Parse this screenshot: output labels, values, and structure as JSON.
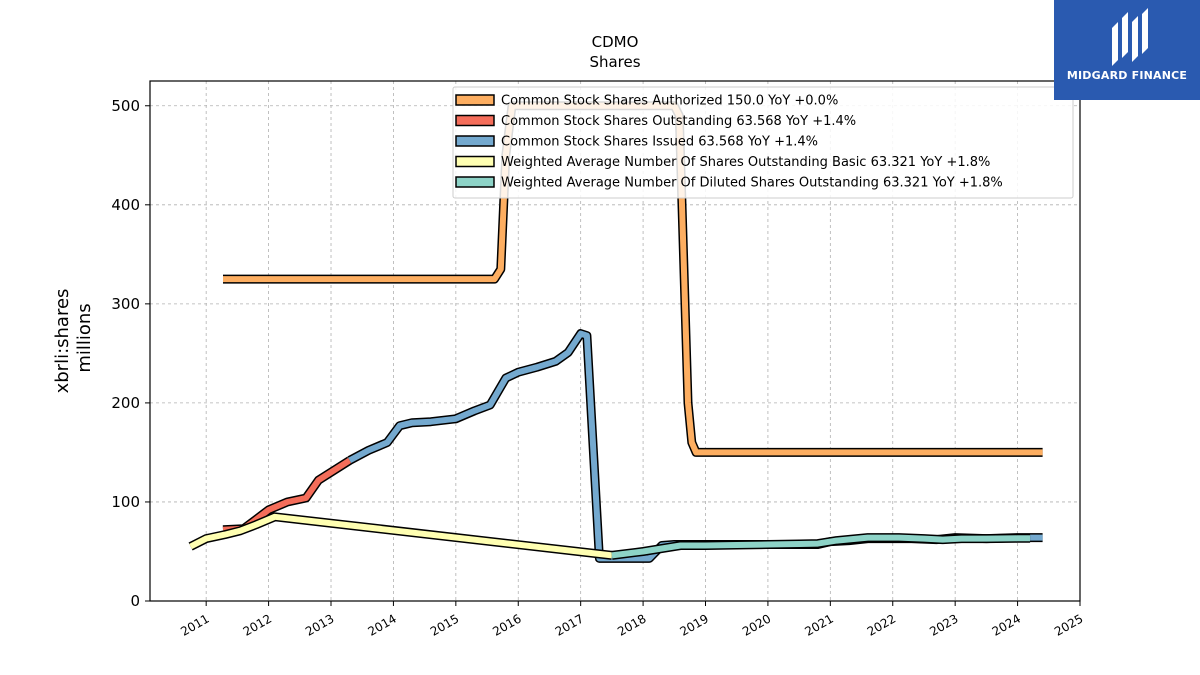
{
  "chart_data": {
    "type": "line",
    "title": "CDMO",
    "subtitle": "Shares",
    "ylabel": "xbrli:shares",
    "ylabel2": "millions",
    "ylim": [
      0,
      525
    ],
    "xlim": [
      2010.1,
      2025.0
    ],
    "yticks": [
      0,
      100,
      200,
      300,
      400,
      500
    ],
    "yticklabels": [
      "0",
      "100",
      "200",
      "300",
      "400",
      "500"
    ],
    "xticks": [
      2011,
      2012,
      2013,
      2014,
      2015,
      2016,
      2017,
      2018,
      2019,
      2020,
      2021,
      2022,
      2023,
      2024,
      2025
    ],
    "xticklabels": [
      "2011",
      "2012",
      "2013",
      "2014",
      "2015",
      "2016",
      "2017",
      "2018",
      "2019",
      "2020",
      "2021",
      "2022",
      "2023",
      "2024",
      "2025"
    ],
    "grid": true,
    "legend_position": "top-right",
    "series": [
      {
        "name": "Common Stock Shares Authorized",
        "label": "Common Stock Shares Authorized  150.0 YoY +0.0%",
        "color": "#fdae61",
        "x": [
          2011.27,
          2015.6,
          2015.62,
          2015.72,
          2015.8,
          2015.9,
          2018.5,
          2018.58,
          2018.72,
          2018.78,
          2018.85,
          2024.4
        ],
        "y": [
          325,
          325,
          325,
          335,
          450,
          500,
          500,
          490,
          200,
          160,
          150,
          150
        ]
      },
      {
        "name": "Common Stock Shares Outstanding",
        "label": "Common Stock Shares Outstanding  63.568 YoY +1.4%",
        "color": "#f46d5a",
        "x": [
          2011.27,
          2011.6,
          2011.75,
          2012.0,
          2012.3,
          2012.6,
          2012.8,
          2013.3
        ],
        "y": [
          72,
          73,
          80,
          92,
          100,
          104,
          122,
          142
        ]
      },
      {
        "name": "Common Stock Shares Issued",
        "label": "Common Stock Shares Issued  63.568 YoY +1.4%",
        "color": "#74a9cf",
        "x": [
          2013.3,
          2013.6,
          2013.9,
          2014.1,
          2014.3,
          2014.6,
          2015.0,
          2015.3,
          2015.55,
          2015.8,
          2016.0,
          2016.3,
          2016.6,
          2016.8,
          2017.0,
          2017.1,
          2017.3,
          2017.45,
          2018.1,
          2018.3,
          2018.5,
          2019.0,
          2019.5,
          2020.0,
          2020.5,
          2020.8,
          2021.0,
          2021.3,
          2021.6,
          2022.0,
          2022.3,
          2022.7,
          2023.0,
          2023.5,
          2024.0,
          2024.4
        ],
        "y": [
          142,
          152,
          160,
          177,
          180,
          181,
          184,
          192,
          198,
          225,
          231,
          236,
          242,
          251,
          270,
          268,
          43,
          43,
          43,
          56,
          57,
          57,
          57,
          57,
          57,
          57,
          60,
          61,
          63,
          63,
          63,
          62,
          64,
          63,
          64,
          64
        ]
      },
      {
        "name": "Weighted Average Number Of Shares Outstanding Basic",
        "label": "Weighted Average Number Of Shares Outstanding Basic  63.321 YoY +1.8%",
        "color": "#ffffb2",
        "x": [
          2010.75,
          2011.0,
          2011.3,
          2011.55,
          2011.8,
          2012.1,
          2017.5
        ],
        "y": [
          55,
          63,
          67,
          71,
          77,
          85,
          46
        ]
      },
      {
        "name": "Weighted Average Number Of Diluted Shares Outstanding",
        "label": "Weighted Average Number Of Diluted Shares Outstanding  63.321 YoY +1.8%",
        "color": "#8dd3c7",
        "x": [
          2017.5,
          2018.0,
          2018.3,
          2018.6,
          2019.0,
          2019.5,
          2020.0,
          2020.5,
          2020.8,
          2021.1,
          2021.6,
          2022.1,
          2022.5,
          2022.8,
          2023.1,
          2023.5,
          2024.0,
          2024.2
        ],
        "y": [
          46,
          50,
          53,
          56,
          56,
          56.5,
          57,
          57.5,
          58,
          61,
          64,
          64,
          63,
          62,
          63,
          63,
          63.3,
          63.3
        ]
      }
    ]
  },
  "logo": {
    "text": "MIDGARD FINANCE",
    "bg_color": "#2a5ab0"
  }
}
